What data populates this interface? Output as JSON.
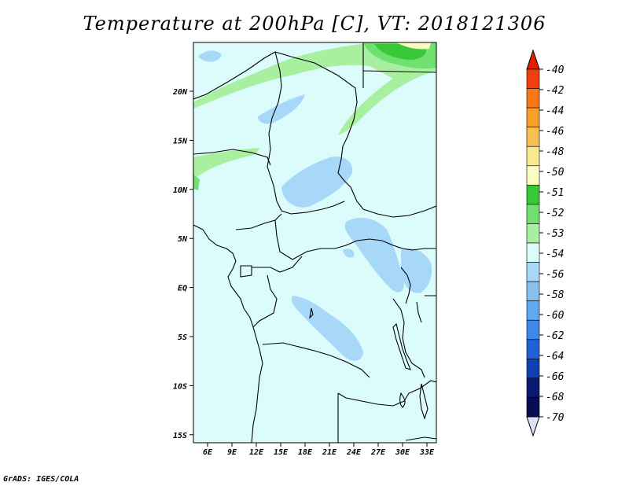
{
  "title": "Temperature at 200hPa [C], VT: 2018121306",
  "credit": "GrADS: IGES/COLA",
  "map": {
    "background_color": "#dcfcfc",
    "lon_ticks": [
      "6E",
      "9E",
      "12E",
      "15E",
      "18E",
      "21E",
      "24E",
      "27E",
      "30E",
      "33E"
    ],
    "lat_ticks": [
      "20N",
      "15N",
      "10N",
      "5N",
      "EQ",
      "5S",
      "10S",
      "15S"
    ]
  },
  "colorbar": {
    "labels": [
      "-40",
      "-42",
      "-44",
      "-46",
      "-48",
      "-50",
      "-51",
      "-52",
      "-53",
      "-54",
      "-56",
      "-58",
      "-60",
      "-62",
      "-64",
      "-66",
      "-68",
      "-70"
    ],
    "colors": [
      "#e02000",
      "#f04010",
      "#f87818",
      "#f8a028",
      "#f8c050",
      "#f8e890",
      "#fcfcc0",
      "#38c838",
      "#70e070",
      "#a8f0a0",
      "#dcfcfc",
      "#a8d8f8",
      "#88c0f0",
      "#60a8f0",
      "#4088e8",
      "#2060d8",
      "#1040b0",
      "#0c1870",
      "#080c50"
    ],
    "top_arrow_color": "#e02000",
    "bottom_arrow_color": "#e0e0fc"
  },
  "shading": {
    "warm_band_color": "#a8f0a0",
    "warmer_color": "#70e070",
    "warmest_color": "#38c838",
    "cold_color": "#a8d8f8"
  }
}
